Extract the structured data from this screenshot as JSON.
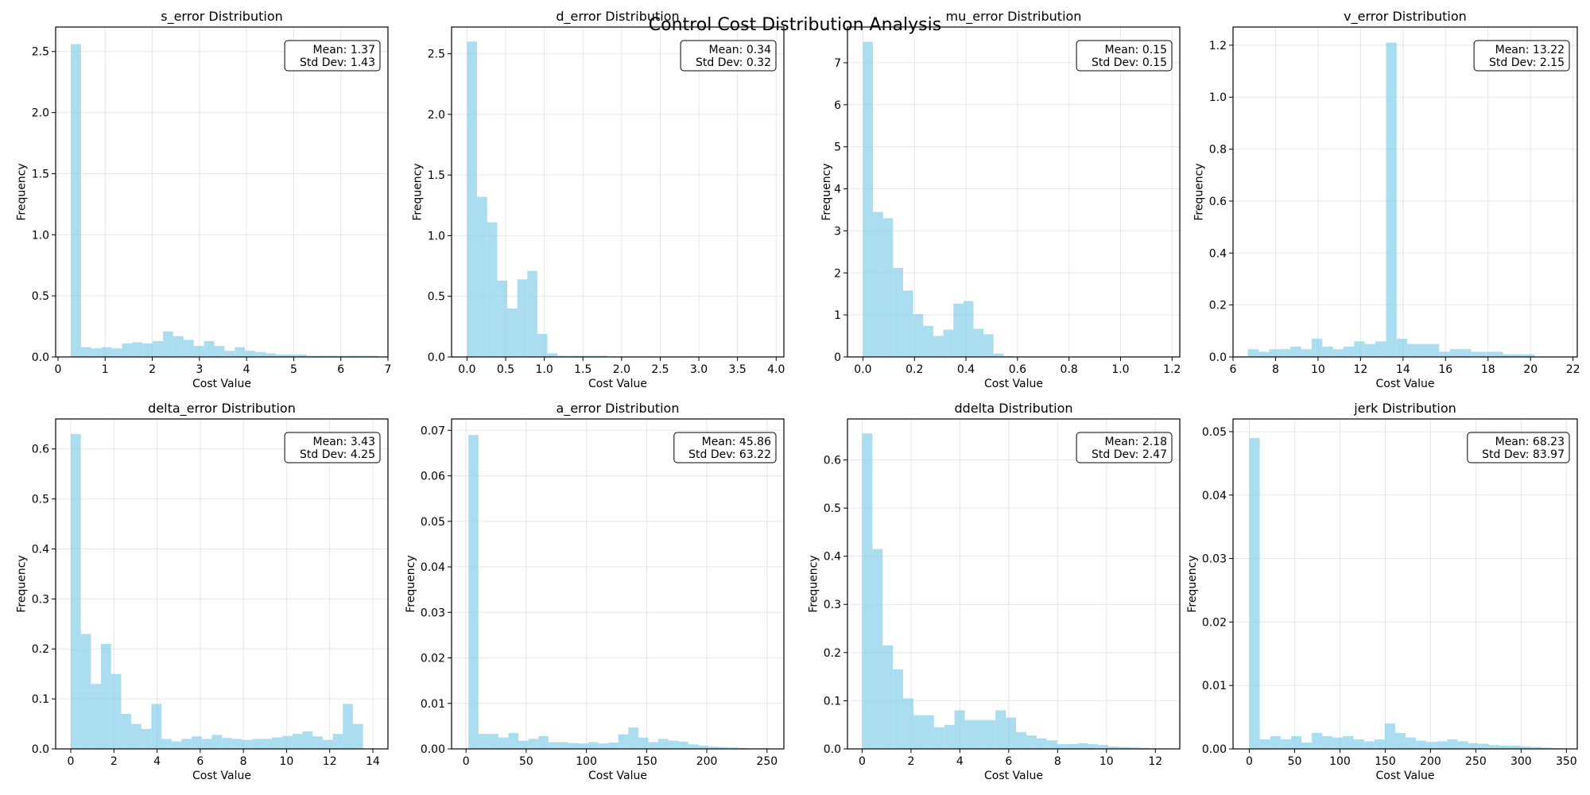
{
  "suptitle": "Control Cost Distribution Analysis",
  "chart_data": [
    {
      "type": "bar",
      "title": "s_error Distribution",
      "xlabel": "Cost Value",
      "ylabel": "Frequency",
      "xlim": [
        -0.05,
        7.0
      ],
      "ylim": [
        0,
        2.7
      ],
      "xticks": [
        0,
        1,
        2,
        3,
        4,
        5,
        6,
        7
      ],
      "yticks": [
        0.0,
        0.5,
        1.0,
        1.5,
        2.0,
        2.5
      ],
      "bin_start": 0.27,
      "bin_width": 0.2175,
      "values": [
        2.56,
        0.08,
        0.07,
        0.08,
        0.07,
        0.11,
        0.12,
        0.11,
        0.13,
        0.21,
        0.17,
        0.14,
        0.09,
        0.13,
        0.09,
        0.05,
        0.08,
        0.05,
        0.04,
        0.03,
        0.02,
        0.02,
        0.02,
        0.01,
        0.01,
        0.01,
        0.01,
        0.01,
        0.01,
        0.01
      ],
      "stats": {
        "mean": "Mean: 1.37",
        "std": "Std Dev: 1.43"
      }
    },
    {
      "type": "bar",
      "title": "d_error Distribution",
      "xlabel": "Cost Value",
      "ylabel": "Frequency",
      "xlim": [
        -0.2,
        4.1
      ],
      "ylim": [
        0,
        2.72
      ],
      "xticks": [
        0.0,
        0.5,
        1.0,
        1.5,
        2.0,
        2.5,
        3.0,
        3.5,
        4.0
      ],
      "yticks": [
        0.0,
        0.5,
        1.0,
        1.5,
        2.0,
        2.5
      ],
      "bin_start": 0.0,
      "bin_width": 0.13,
      "values": [
        2.6,
        1.32,
        1.11,
        0.63,
        0.4,
        0.64,
        0.71,
        0.19,
        0.03,
        0.01,
        0.01,
        0.01,
        0.01,
        0.01,
        0.0,
        0.0,
        0.0,
        0.0,
        0.0,
        0.0,
        0.0,
        0.0,
        0.0,
        0.0,
        0.0,
        0.0,
        0.0,
        0.0,
        0.0,
        0.0
      ],
      "stats": {
        "mean": "Mean: 0.34",
        "std": "Std Dev: 0.32"
      }
    },
    {
      "type": "bar",
      "title": "mu_error Distribution",
      "xlabel": "Cost Value",
      "ylabel": "Frequency",
      "xlim": [
        -0.06,
        1.23
      ],
      "ylim": [
        0,
        7.85
      ],
      "xticks": [
        0.0,
        0.2,
        0.4,
        0.6,
        0.8,
        1.0,
        1.2
      ],
      "yticks": [
        0,
        1,
        2,
        3,
        4,
        5,
        6,
        7
      ],
      "bin_start": 0.0,
      "bin_width": 0.039,
      "values": [
        7.5,
        3.45,
        3.3,
        2.12,
        1.58,
        1.02,
        0.74,
        0.5,
        0.65,
        1.27,
        1.33,
        0.67,
        0.54,
        0.08,
        0.02,
        0.01,
        0.0,
        0.0,
        0.0,
        0.0,
        0.0,
        0.0,
        0.0,
        0.0,
        0.0,
        0.0,
        0.0,
        0.0,
        0.0,
        0.0
      ],
      "stats": {
        "mean": "Mean: 0.15",
        "std": "Std Dev: 0.15"
      }
    },
    {
      "type": "bar",
      "title": "v_error Distribution",
      "xlabel": "Cost Value",
      "ylabel": "Frequency",
      "xlim": [
        6.0,
        22.2
      ],
      "ylim": [
        0,
        1.27
      ],
      "xticks": [
        6,
        8,
        10,
        12,
        14,
        16,
        18,
        20,
        22
      ],
      "yticks": [
        0.0,
        0.2,
        0.4,
        0.6,
        0.8,
        1.0,
        1.2
      ],
      "bin_start": 6.7,
      "bin_width": 0.5,
      "values": [
        0.03,
        0.02,
        0.03,
        0.03,
        0.04,
        0.03,
        0.07,
        0.04,
        0.03,
        0.04,
        0.06,
        0.05,
        0.06,
        1.21,
        0.07,
        0.05,
        0.05,
        0.05,
        0.02,
        0.03,
        0.03,
        0.02,
        0.02,
        0.02,
        0.01,
        0.01,
        0.01,
        0.0,
        0.0,
        0.0
      ],
      "stats": {
        "mean": "Mean: 13.22",
        "std": "Std Dev: 2.15"
      }
    },
    {
      "type": "bar",
      "title": "delta_error Distribution",
      "xlabel": "Cost Value",
      "ylabel": "Frequency",
      "xlim": [
        -0.7,
        14.7
      ],
      "ylim": [
        0,
        0.66
      ],
      "xticks": [
        0,
        2,
        4,
        6,
        8,
        10,
        12,
        14
      ],
      "yticks": [
        0.0,
        0.1,
        0.2,
        0.3,
        0.4,
        0.5,
        0.6
      ],
      "bin_start": 0.0,
      "bin_width": 0.467,
      "values": [
        0.63,
        0.23,
        0.13,
        0.21,
        0.15,
        0.07,
        0.05,
        0.04,
        0.09,
        0.02,
        0.015,
        0.02,
        0.025,
        0.02,
        0.028,
        0.022,
        0.02,
        0.018,
        0.02,
        0.02,
        0.023,
        0.026,
        0.03,
        0.035,
        0.025,
        0.018,
        0.03,
        0.09,
        0.05,
        0.0
      ],
      "stats": {
        "mean": "Mean: 3.43",
        "std": "Std Dev: 4.25"
      }
    },
    {
      "type": "bar",
      "title": "a_error Distribution",
      "xlabel": "Cost Value",
      "ylabel": "Frequency",
      "xlim": [
        -12,
        264
      ],
      "ylim": [
        0,
        0.0725
      ],
      "xticks": [
        0,
        50,
        100,
        150,
        200,
        250
      ],
      "yticks": [
        0.0,
        0.01,
        0.02,
        0.03,
        0.04,
        0.05,
        0.06,
        0.07
      ],
      "bin_start": 2.0,
      "bin_width": 8.3,
      "values": [
        0.069,
        0.0033,
        0.0033,
        0.0025,
        0.0035,
        0.0018,
        0.0022,
        0.0028,
        0.0015,
        0.0015,
        0.0013,
        0.0012,
        0.0015,
        0.0012,
        0.0014,
        0.0032,
        0.0047,
        0.0025,
        0.0015,
        0.0022,
        0.0018,
        0.0016,
        0.001,
        0.0007,
        0.0005,
        0.0004,
        0.0003,
        0.0002,
        0.0001,
        0.0001
      ],
      "stats": {
        "mean": "Mean: 45.86",
        "std": "Std Dev: 63.22"
      }
    },
    {
      "type": "bar",
      "title": "ddelta Distribution",
      "xlabel": "Cost Value",
      "ylabel": "Frequency",
      "xlim": [
        -0.6,
        13.0
      ],
      "ylim": [
        0,
        0.685
      ],
      "xticks": [
        0,
        2,
        4,
        6,
        8,
        10,
        12
      ],
      "yticks": [
        0.0,
        0.1,
        0.2,
        0.3,
        0.4,
        0.5,
        0.6
      ],
      "bin_start": 0.0,
      "bin_width": 0.42,
      "values": [
        0.655,
        0.415,
        0.215,
        0.165,
        0.105,
        0.07,
        0.07,
        0.045,
        0.05,
        0.08,
        0.06,
        0.06,
        0.06,
        0.08,
        0.065,
        0.035,
        0.028,
        0.022,
        0.018,
        0.01,
        0.01,
        0.012,
        0.01,
        0.008,
        0.005,
        0.004,
        0.003,
        0.002,
        0.001,
        0.001
      ],
      "stats": {
        "mean": "Mean: 2.18",
        "std": "Std Dev: 2.47"
      }
    },
    {
      "type": "bar",
      "title": "jerk Distribution",
      "xlabel": "Cost Value",
      "ylabel": "Frequency",
      "xlim": [
        -18,
        362
      ],
      "ylim": [
        0,
        0.052
      ],
      "xticks": [
        0,
        50,
        100,
        150,
        200,
        250,
        300,
        350
      ],
      "yticks": [
        0.0,
        0.01,
        0.02,
        0.03,
        0.04,
        0.05
      ],
      "bin_start": 0.0,
      "bin_width": 11.5,
      "values": [
        0.049,
        0.0015,
        0.002,
        0.0015,
        0.002,
        0.001,
        0.0025,
        0.002,
        0.0018,
        0.002,
        0.0015,
        0.0012,
        0.0015,
        0.004,
        0.0025,
        0.0018,
        0.0013,
        0.0011,
        0.0012,
        0.0015,
        0.0012,
        0.0009,
        0.0008,
        0.0006,
        0.0005,
        0.0005,
        0.0004,
        0.0003,
        0.0002,
        0.0001
      ],
      "stats": {
        "mean": "Mean: 68.23",
        "std": "Std Dev: 83.97"
      }
    }
  ]
}
